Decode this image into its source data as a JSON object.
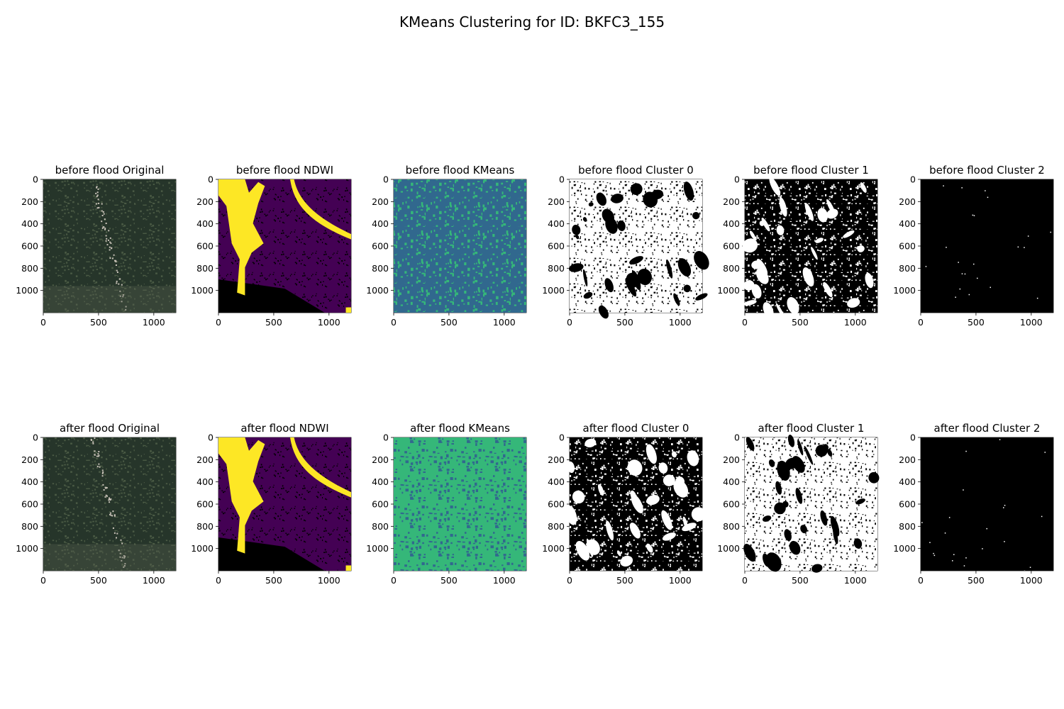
{
  "figure": {
    "title": "KMeans Clustering for ID: BKFC3_155"
  },
  "chart_data": [
    {
      "type": "heatmap",
      "title": "before flood Original",
      "image": "rgb-satellite",
      "x_ticks": [
        0,
        500,
        1000
      ],
      "y_ticks": [
        0,
        200,
        400,
        600,
        800,
        1000
      ],
      "xlim": [
        0,
        1200
      ],
      "ylim": [
        1200,
        0
      ]
    },
    {
      "type": "heatmap",
      "title": "before flood NDWI",
      "image": "ndwi",
      "x_ticks": [
        0,
        500,
        1000
      ],
      "y_ticks": [
        0,
        200,
        400,
        600,
        800,
        1000
      ],
      "xlim": [
        0,
        1200
      ],
      "ylim": [
        1200,
        0
      ]
    },
    {
      "type": "heatmap",
      "title": "before flood KMeans",
      "image": "kmeans-labels",
      "x_ticks": [
        0,
        500,
        1000
      ],
      "y_ticks": [
        0,
        200,
        400,
        600,
        800,
        1000
      ],
      "xlim": [
        0,
        1200
      ],
      "ylim": [
        1200,
        0
      ]
    },
    {
      "type": "heatmap",
      "title": "before flood Cluster 0",
      "image": "binary-mask-mostly-white",
      "x_ticks": [
        0,
        500,
        1000
      ],
      "y_ticks": [
        0,
        200,
        400,
        600,
        800,
        1000
      ],
      "xlim": [
        0,
        1200
      ],
      "ylim": [
        1200,
        0
      ]
    },
    {
      "type": "heatmap",
      "title": "before flood Cluster 1",
      "image": "binary-mask-mostly-black",
      "x_ticks": [
        0,
        500,
        1000
      ],
      "y_ticks": [
        0,
        200,
        400,
        600,
        800,
        1000
      ],
      "xlim": [
        0,
        1200
      ],
      "ylim": [
        1200,
        0
      ]
    },
    {
      "type": "heatmap",
      "title": "before flood Cluster 2",
      "image": "binary-mask-sparse",
      "x_ticks": [
        0,
        500,
        1000
      ],
      "y_ticks": [
        0,
        200,
        400,
        600,
        800,
        1000
      ],
      "xlim": [
        0,
        1200
      ],
      "ylim": [
        1200,
        0
      ]
    },
    {
      "type": "heatmap",
      "title": "after flood Original",
      "image": "rgb-satellite",
      "x_ticks": [
        0,
        500,
        1000
      ],
      "y_ticks": [
        0,
        200,
        400,
        600,
        800,
        1000
      ],
      "xlim": [
        0,
        1200
      ],
      "ylim": [
        1200,
        0
      ]
    },
    {
      "type": "heatmap",
      "title": "after flood NDWI",
      "image": "ndwi",
      "x_ticks": [
        0,
        500,
        1000
      ],
      "y_ticks": [
        0,
        200,
        400,
        600,
        800,
        1000
      ],
      "xlim": [
        0,
        1200
      ],
      "ylim": [
        1200,
        0
      ]
    },
    {
      "type": "heatmap",
      "title": "after flood KMeans",
      "image": "kmeans-labels-green",
      "x_ticks": [
        0,
        500,
        1000
      ],
      "y_ticks": [
        0,
        200,
        400,
        600,
        800,
        1000
      ],
      "xlim": [
        0,
        1200
      ],
      "ylim": [
        1200,
        0
      ]
    },
    {
      "type": "heatmap",
      "title": "after flood Cluster 0",
      "image": "binary-mask-mostly-black",
      "x_ticks": [
        0,
        500,
        1000
      ],
      "y_ticks": [
        0,
        200,
        400,
        600,
        800,
        1000
      ],
      "xlim": [
        0,
        1200
      ],
      "ylim": [
        1200,
        0
      ]
    },
    {
      "type": "heatmap",
      "title": "after flood Cluster 1",
      "image": "binary-mask-mostly-white",
      "x_ticks": [
        0,
        500,
        1000
      ],
      "y_ticks": [
        0,
        200,
        400,
        600,
        800,
        1000
      ],
      "xlim": [
        0,
        1200
      ],
      "ylim": [
        1200,
        0
      ]
    },
    {
      "type": "heatmap",
      "title": "after flood Cluster 2",
      "image": "binary-mask-sparse",
      "x_ticks": [
        0,
        500,
        1000
      ],
      "y_ticks": [
        0,
        200,
        400,
        600,
        800,
        1000
      ],
      "xlim": [
        0,
        1200
      ],
      "ylim": [
        1200,
        0
      ]
    }
  ],
  "colors": {
    "ndwi_water": "#fde725",
    "ndwi_land": "#440154",
    "kmeans_teal": "#31688e",
    "kmeans_green": "#35b779",
    "kmeans_bright": "#6ece58",
    "satellite_dark": "#26352a"
  }
}
